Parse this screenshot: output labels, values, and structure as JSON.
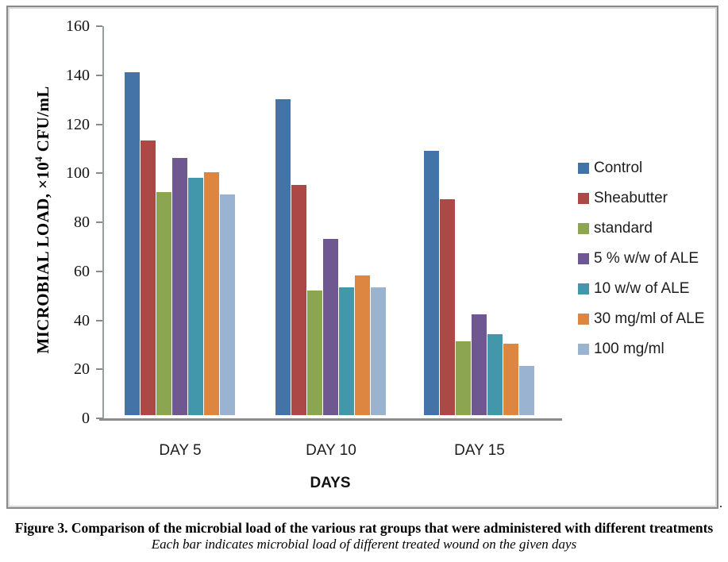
{
  "figure": {
    "caption_bold": "Figure 3. Comparison of the microbial load of the various rat groups that were administered with different treatments",
    "caption_italic": "Each bar indicates microbial load of different treated wound on the given days",
    "trailing_period": "."
  },
  "chart_data": {
    "type": "bar",
    "title": "",
    "xlabel": "DAYS",
    "ylabel_prefix": "MICROBIAL LOAD, ×10",
    "ylabel_superscript": "4",
    "ylabel_suffix": " CFU/mL",
    "categories": [
      "DAY 5",
      "DAY 10",
      "DAY 15"
    ],
    "series": [
      {
        "name": "Control",
        "color": "#4473A7",
        "values": [
          140,
          129,
          108
        ]
      },
      {
        "name": "Sheabutter",
        "color": "#AC4846",
        "values": [
          112,
          94,
          88
        ]
      },
      {
        "name": "standard",
        "color": "#8CA551",
        "values": [
          91,
          51,
          30
        ]
      },
      {
        "name": "5 % w/w of ALE",
        "color": "#6F5792",
        "values": [
          105,
          72,
          41
        ]
      },
      {
        "name": "10 w/w of ALE",
        "color": "#4297AB",
        "values": [
          97,
          52,
          33
        ]
      },
      {
        "name": "30 mg/ml of ALE",
        "color": "#DD8642",
        "values": [
          99,
          57,
          29
        ]
      },
      {
        "name": "100 mg/ml",
        "color": "#9AB3D0",
        "values": [
          90,
          52,
          20
        ]
      }
    ],
    "ylim": [
      0,
      160
    ],
    "ytick_step": 20,
    "yticks": [
      160,
      140,
      120,
      100,
      80,
      60,
      40,
      20,
      0
    ],
    "grid": false,
    "legend_position": "right-inside",
    "axis_color": "#9a9da1",
    "baseline_color": "#8c8c8c"
  }
}
